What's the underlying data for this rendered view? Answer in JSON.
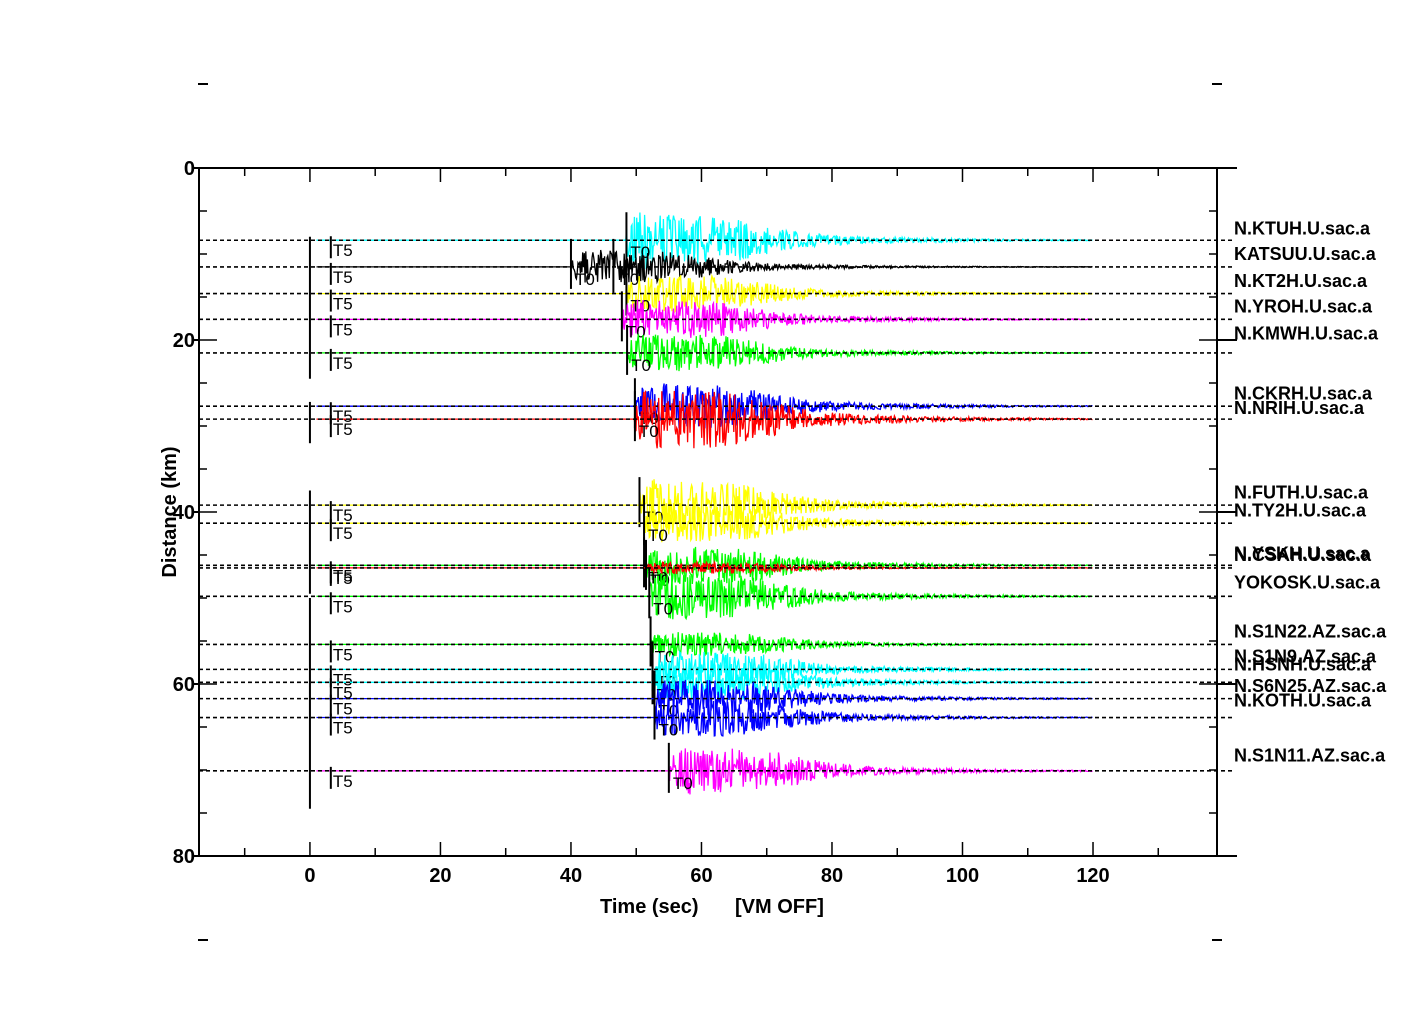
{
  "chart_data": {
    "type": "line",
    "xlabel": "Time  (sec)",
    "x_note": "[VM OFF]",
    "ylabel": "Distance  (km)",
    "xlim": [
      -17,
      139
    ],
    "ylim": [
      0,
      80
    ],
    "x_ticks": [
      0,
      20,
      40,
      60,
      80,
      100,
      120
    ],
    "y_ticks": [
      0,
      20,
      40,
      60,
      80
    ],
    "grid": false,
    "pick_labels": {
      "origin": "T5",
      "arrival": "T0"
    },
    "traces": [
      {
        "name": "N.KTUH.U.sac.a",
        "distance": 8.4,
        "t0": 48.5,
        "color": "#00ffff",
        "amp": 3.5
      },
      {
        "name": "KATSUU.U.sac.a",
        "distance": 11.5,
        "t0": 40.0,
        "t0b": 46.5,
        "color": "#000000",
        "amp": 2.2
      },
      {
        "name": "N.KT2H.U.sac.a",
        "distance": 14.6,
        "t0": 48.5,
        "color": "#ffff00",
        "amp": 2.5
      },
      {
        "name": "N.YROH.U.sac.a",
        "distance": 17.6,
        "t0": 47.8,
        "color": "#ff00ff",
        "amp": 2.5
      },
      {
        "name": "N.KMWH.U.sac.a",
        "distance": 21.5,
        "t0": 48.6,
        "color": "#00ff00",
        "amp": 2.5
      },
      {
        "name": "N.CKRH.U.sac.a",
        "distance": 27.7,
        "t0": 49.8,
        "color": "#0000ff",
        "amp": 3.0
      },
      {
        "name": "N.NRIH.U.sac.a",
        "distance": 29.2,
        "t0": 49.8,
        "color": "#ff0000",
        "amp": 4.0
      },
      {
        "name": "N.FUTH.U.sac.a",
        "distance": 39.2,
        "t0": 50.5,
        "color": "#ffff00",
        "amp": 3.2
      },
      {
        "name": "N.TY2H.U.sac.a",
        "distance": 41.3,
        "t0": 51.2,
        "color": "#ffff00",
        "amp": 2.5
      },
      {
        "name": "N.YSKH.U.sac.a",
        "distance": 46.2,
        "t0": 51.2,
        "color": "#00ff00",
        "amp": 2.5
      },
      {
        "name": "N.CSAH.U.sac.a",
        "distance": 46.5,
        "t0": 51.5,
        "color": "#ff0000",
        "amp": 0.8
      },
      {
        "name": "YOKOSK.U.sac.a",
        "distance": 49.8,
        "t0": 52.0,
        "color": "#00ff00",
        "amp": 3.0
      },
      {
        "name": "N.S1N22.AZ.sac.a",
        "distance": 55.4,
        "t0": 52.2,
        "color": "#00ff00",
        "amp": 1.6
      },
      {
        "name": "N.S1N9.AZ.sac.a",
        "distance": 58.3,
        "t0": 52.5,
        "color": "#00ffff",
        "amp": 2.5
      },
      {
        "name": "N.HSNH.U.sac.a",
        "distance": 59.8,
        "t0": 52.5,
        "color": "#00ffff",
        "amp": 2.5
      },
      {
        "name": "N.S6N25.AZ.sac.a",
        "distance": 61.7,
        "t0": 52.8,
        "color": "#0000ff",
        "amp": 2.5
      },
      {
        "name": "N.KOTH.U.sac.a",
        "distance": 63.9,
        "t0": 52.8,
        "color": "#0000ff",
        "amp": 2.5
      },
      {
        "name": "N.S1N11.AZ.sac.a",
        "distance": 70.1,
        "t0": 55.0,
        "color": "#ff00ff",
        "amp": 3.0
      }
    ],
    "label_rows": [
      {
        "text": "N.KTUH.U.sac.a",
        "y": 6.9,
        "refs": [
          "N.KTUH.U.sac.a"
        ]
      },
      {
        "text": "KATSUU.U.sac.a",
        "y": 9.9,
        "refs": [
          "KATSUU.U.sac.a"
        ]
      },
      {
        "text": "N.KT2H.U.sac.a",
        "y": 13.0,
        "refs": [
          "N.KT2H.U.sac.a"
        ]
      },
      {
        "text": "N.YROH.U.sac.a",
        "y": 16.0,
        "refs": [
          "N.YROH.U.sac.a"
        ]
      },
      {
        "text": "N.KMWH.U.sac.a",
        "y": 19.1,
        "refs": [
          "N.KMWH.U.sac.a"
        ]
      },
      {
        "text": "N.CKRH.U.sac.a",
        "y": 26.1,
        "refs": [
          "N.CKRH.U.sac.a"
        ]
      },
      {
        "text": "N.NRIH.U.sac.a",
        "y": 27.8,
        "refs": [
          "N.NRIH.U.sac.a"
        ]
      },
      {
        "text": "N.FUTH.U.sac.a",
        "y": 37.6,
        "refs": [
          "N.FUTH.U.sac.a"
        ]
      },
      {
        "text": "N.TY2H.U.sac.a",
        "y": 39.7,
        "refs": [
          "N.TY2H.U.sac.a"
        ]
      },
      {
        "text": "N.YSKH.U.sac.a",
        "y": 44.7,
        "refs": [
          "N.YSKH.U.sac.a"
        ]
      },
      {
        "text": "N.CSAH.U.sac.a",
        "y": 44.9,
        "refs": [
          "N.CSAH.U.sac.a"
        ]
      },
      {
        "text": "YOKOSK.U.sac.a",
        "y": 48.1,
        "refs": [
          "YOKOSK.U.sac.a"
        ]
      },
      {
        "text": "N.S1N22.AZ.sac.a",
        "y": 53.8,
        "refs": [
          "N.S1N22.AZ.sac.a"
        ]
      },
      {
        "text": "N.S1N9.AZ.sac.a",
        "y": 56.7,
        "refs": [
          "N.S1N9.AZ.sac.a"
        ]
      },
      {
        "text": "N.HSNH.U.sac.a",
        "y": 57.6,
        "refs": [
          "N.HSNH.U.sac.a"
        ]
      },
      {
        "text": "N.S6N25.AZ.sac.a",
        "y": 60.1,
        "refs": [
          "N.S6N25.AZ.sac.a"
        ]
      },
      {
        "text": "N.KOTH.U.sac.a",
        "y": 61.8,
        "refs": [
          "N.KOTH.U.sac.a"
        ]
      },
      {
        "text": "N.S1N11.AZ.sac.a",
        "y": 68.2,
        "refs": [
          "N.S1N11.AZ.sac.a"
        ]
      }
    ]
  }
}
